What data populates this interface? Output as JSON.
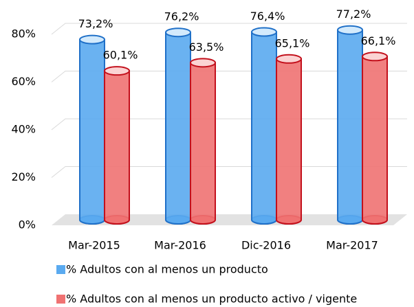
{
  "chart_data": {
    "type": "bar3d",
    "categories": [
      "Mar-2015",
      "Mar-2016",
      "Dic-2016",
      "Mar-2017"
    ],
    "series": [
      {
        "name": "% Adultos con al menos un producto",
        "color": "#5aaaf0",
        "stroke": "#1f70c8",
        "values": [
          73.2,
          76.2,
          76.4,
          77.2
        ],
        "value_labels": [
          "73,2%",
          "76,2%",
          "76,4%",
          "77,2%"
        ]
      },
      {
        "name": "% Adultos con al menos un producto activo / vigente",
        "color": "#f07272",
        "stroke": "#c3101c",
        "values": [
          60.1,
          63.5,
          65.1,
          66.1
        ],
        "value_labels": [
          "60,1%",
          "63,5%",
          "65,1%",
          "66,1%"
        ]
      }
    ],
    "ylim": [
      0,
      80
    ],
    "yticks": [
      {
        "value": 0,
        "label": "0%"
      },
      {
        "value": 20,
        "label": "20%"
      },
      {
        "value": 40,
        "label": "40%"
      },
      {
        "value": 60,
        "label": "60%"
      },
      {
        "value": 80,
        "label": "80%"
      }
    ],
    "grid": true
  }
}
